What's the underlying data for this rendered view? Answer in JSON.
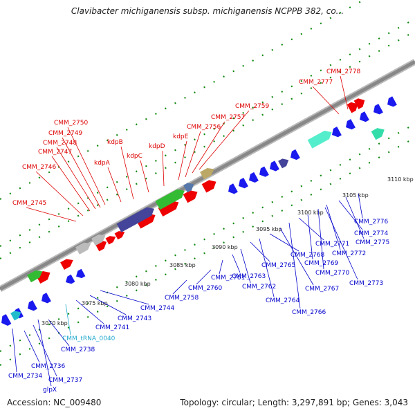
{
  "title": "Clavibacter michiganensis subsp. michiganensis NCPPB 382, co...",
  "footer": {
    "accession": "Accession: NC_009480",
    "stats": "Topology: circular; Length: 3,297,891 bp; Genes: 3,043"
  },
  "colors": {
    "backbone": "#888888",
    "forward_label": "#dd0000",
    "reverse_label": "#0000cc",
    "trna_label": "#22aacc",
    "forward_gene": "#ee0000",
    "reverse_gene": "#1a1aee",
    "tick": "#118811",
    "ruler_label": "#222222"
  },
  "ruler": [
    "3070 kbp",
    "3075 kbp",
    "3080 kbp",
    "3085 kbp",
    "3090 kbp",
    "3095 kbp",
    "3100 kbp",
    "3105 kbp",
    "3110 kbp"
  ],
  "forward_labels": [
    "CMM_2745",
    "CMM_2746",
    "CMM_2747",
    "CMM_2748",
    "CMM_2749",
    "CMM_2750",
    "kdpA",
    "kdpB",
    "kdpC",
    "kdpD",
    "kdpE",
    "CMM_2756",
    "CMM_2757",
    "CMM_2759",
    "CMM_2777",
    "CMM_2778"
  ],
  "reverse_labels": [
    "CMM_2734",
    "glpX",
    "CMM_2736",
    "CMM_2737",
    "CMM_2738",
    "CMM_tRNA_0040",
    "CMM_2741",
    "CMM_2743",
    "CMM_2744",
    "CMM_2758",
    "CMM_2760",
    "CMM_2761",
    "CMM_2763",
    "CMM_2762",
    "CMM_2765",
    "CMM_2764",
    "CMM_2768",
    "CMM_2767",
    "CMM_2766",
    "CMM_2771",
    "CMM_2769",
    "CMM_2770",
    "CMM_2772",
    "CMM_2774",
    "CMM_2775",
    "CMM_2776",
    "CMM_2773"
  ]
}
